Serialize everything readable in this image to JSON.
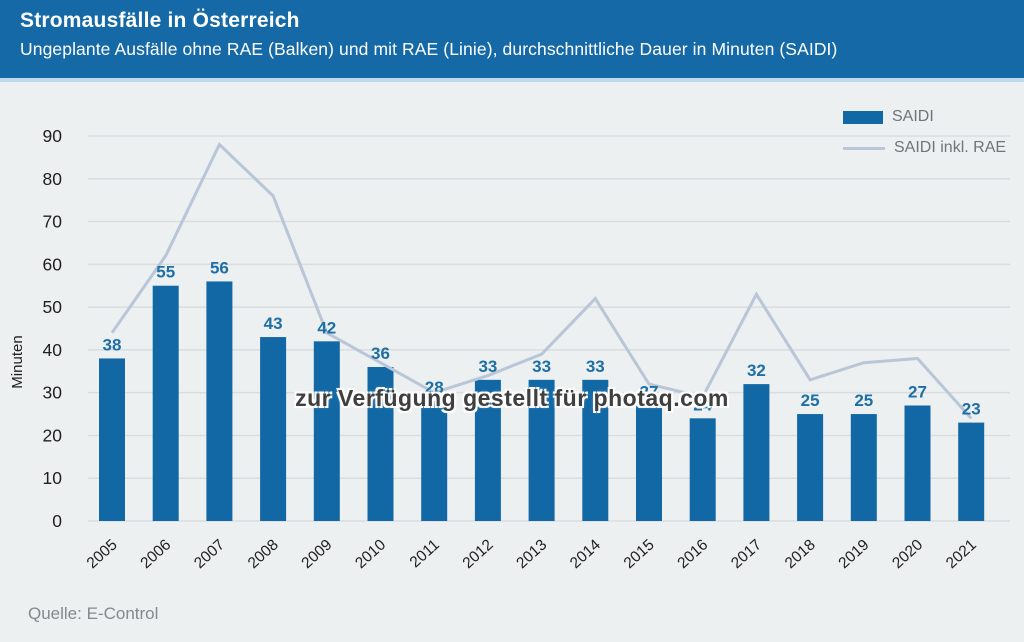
{
  "header": {
    "title": "Stromausfälle in Österreich",
    "subtitle": "Ungeplante Ausfälle ohne RAE (Balken) und mit RAE (Linie), durchschnittliche Dauer in Minuten (SAIDI)"
  },
  "legend": {
    "bar_label": "SAIDI",
    "line_label": "SAIDI inkl. RAE"
  },
  "watermark": "zur Verfügung gestellt für photaq.com",
  "source": "Quelle: E-Control",
  "colors": {
    "header_bg": "#1569a6",
    "header_separator": "#bdd9ec",
    "page_bg": "#edf0f1",
    "bar": "#1268a4",
    "value_label": "#1d6fa5",
    "line": "#b9c6d8",
    "grid": "#d9dddf",
    "axis_text": "#1f1f1f",
    "legend_text": "#6e7579",
    "source_text": "#84898c",
    "watermark_text": "#3f3f3f"
  },
  "chart_data": {
    "type": "bar",
    "title": "Stromausfälle in Österreich",
    "subtitle": "Ungeplante Ausfälle ohne RAE (Balken) und mit RAE (Linie), durchschnittliche Dauer in Minuten (SAIDI)",
    "categories": [
      "2005",
      "2006",
      "2007",
      "2008",
      "2009",
      "2010",
      "2011",
      "2012",
      "2013",
      "2014",
      "2015",
      "2016",
      "2017",
      "2018",
      "2019",
      "2020",
      "2021"
    ],
    "series": [
      {
        "name": "SAIDI",
        "type": "bar",
        "values": [
          38,
          55,
          56,
          43,
          42,
          36,
          28,
          33,
          33,
          33,
          27,
          24,
          32,
          25,
          25,
          27,
          23
        ]
      },
      {
        "name": "SAIDI inkl. RAE",
        "type": "line",
        "values": [
          44,
          62,
          88,
          76,
          44,
          37,
          30,
          34,
          39,
          52,
          32,
          29,
          53,
          33,
          37,
          38,
          24
        ]
      }
    ],
    "xlabel": "",
    "ylabel": "Minuten",
    "ylim": [
      0,
      90
    ],
    "ytick_step": 10,
    "grid": "horizontal",
    "legend_position": "top-right",
    "source": "Quelle: E-Control"
  }
}
